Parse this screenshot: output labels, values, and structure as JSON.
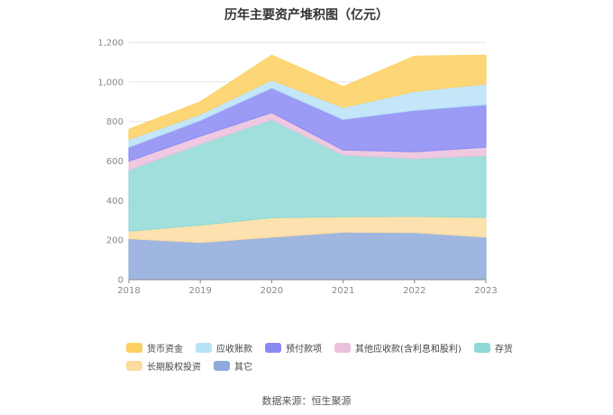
{
  "chart_data": {
    "type": "area",
    "stacked": true,
    "title": "历年主要资产堆积图（亿元）",
    "x": [
      "2018",
      "2019",
      "2020",
      "2021",
      "2022",
      "2023"
    ],
    "ylim": [
      0,
      1200
    ],
    "yticks": [
      0,
      200,
      400,
      600,
      800,
      1000,
      1200
    ],
    "ytick_labels": [
      "0",
      "200",
      "400",
      "600",
      "800",
      "1,000",
      "1,200"
    ],
    "grid": true,
    "legend_position": "bottom",
    "series": [
      {
        "name": "其它",
        "color": "#8eaadb",
        "values": [
          207,
          188,
          215,
          240,
          238,
          215
        ]
      },
      {
        "name": "长期股权投资",
        "color": "#fddca0",
        "values": [
          38,
          88,
          98,
          78,
          82,
          100
        ]
      },
      {
        "name": "存货",
        "color": "#8fd9d6",
        "values": [
          310,
          410,
          497,
          313,
          292,
          313
        ]
      },
      {
        "name": "其他应收款(含利息和股利)",
        "color": "#ecc0dc",
        "values": [
          45,
          40,
          35,
          25,
          35,
          42
        ]
      },
      {
        "name": "预付款项",
        "color": "#8a8af5",
        "values": [
          70,
          80,
          125,
          155,
          210,
          215
        ]
      },
      {
        "name": "应收账款",
        "color": "#b8e2f8",
        "values": [
          40,
          30,
          40,
          60,
          95,
          105
        ]
      },
      {
        "name": "货币资金",
        "color": "#fdd05f",
        "values": [
          50,
          64,
          125,
          105,
          178,
          145
        ]
      }
    ],
    "legend_order": [
      "货币资金",
      "应收账款",
      "预付款项",
      "其他应收款(含利息和股利)",
      "存货",
      "长期股权投资",
      "其它"
    ]
  },
  "source": "数据来源：恒生聚源"
}
